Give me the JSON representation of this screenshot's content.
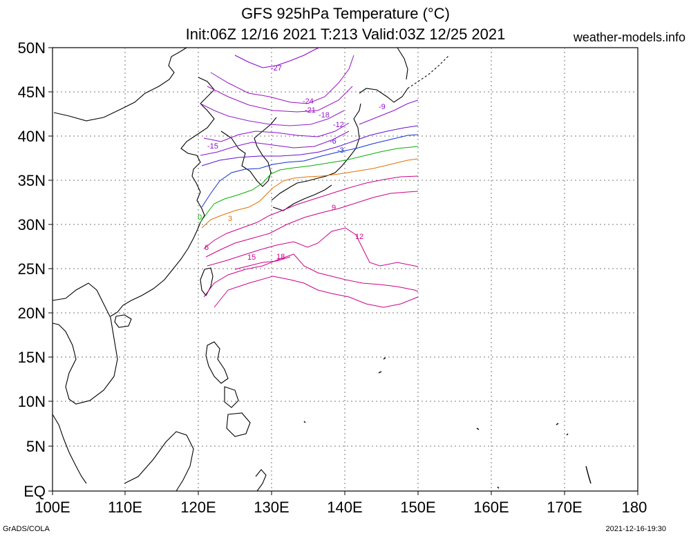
{
  "title": {
    "line1": "GFS 925hPa Temperature (°C)",
    "line2": "Init:06Z 12/16 2021 T:213 Valid:03Z 12/25 2021",
    "site": "weather-models.info"
  },
  "footer": {
    "left": "GrADS/COLA",
    "right": "2021-12-16-19:30"
  },
  "axes": {
    "lat_labels": [
      "50N",
      "45N",
      "40N",
      "35N",
      "30N",
      "25N",
      "20N",
      "15N",
      "10N",
      "5N",
      "EQ"
    ],
    "lon_labels": [
      "100E",
      "110E",
      "120E",
      "130E",
      "140E",
      "150E",
      "160E",
      "170E",
      "180"
    ]
  },
  "colors": {
    "minus27": "#8800cc",
    "minus24": "#9a10c0",
    "minus18": "#9020c8",
    "minus12": "#8a10c8",
    "minus6": "#6010d0",
    "minus3": "#1030d0",
    "zero": "#00b000",
    "plus3": "#e07000",
    "plus6_18": "#cc0088",
    "coast": "#000000",
    "grid": "#777777"
  },
  "contour_labels": [
    "-27",
    "-24",
    "-21",
    "-18",
    "-15",
    "-12",
    "-9",
    "-6",
    "-3",
    "0",
    "3",
    "6",
    "9",
    "12",
    "15",
    "18"
  ]
}
